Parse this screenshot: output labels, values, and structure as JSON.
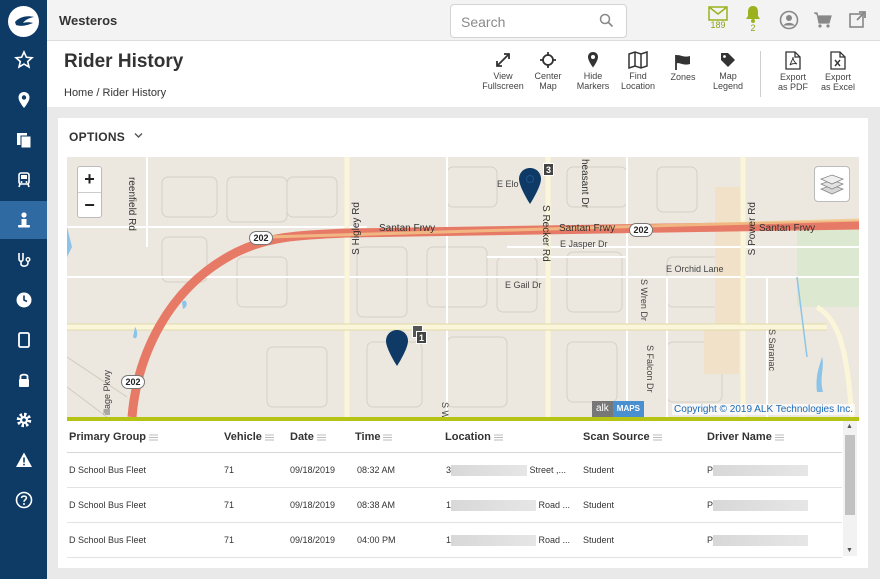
{
  "org_name": "Westeros",
  "search": {
    "placeholder": "Search"
  },
  "notifications": {
    "messages_count": "189",
    "alerts_count": "2"
  },
  "accent_colors": {
    "sidebar": "#0e3a66",
    "sidebar_active": "#2f6aa3",
    "highlight": "#b5c315",
    "link": "#1b6ab7"
  },
  "page": {
    "title": "Rider History",
    "breadcrumb_home": "Home",
    "breadcrumb_sep": "/",
    "breadcrumb_current": "Rider History"
  },
  "toolbar": [
    {
      "line1": "View",
      "line2": "Fullscreen",
      "icon": "expand-icon"
    },
    {
      "line1": "Center",
      "line2": "Map",
      "icon": "crosshair-icon"
    },
    {
      "line1": "Hide",
      "line2": "Markers",
      "icon": "map-pin-icon"
    },
    {
      "line1": "Find",
      "line2": "Location",
      "icon": "map-icon"
    },
    {
      "line1": "Zones",
      "line2": "",
      "icon": "flag-icon"
    },
    {
      "line1": "Map",
      "line2": "Legend",
      "icon": "tag-icon"
    },
    {
      "line1": "Export",
      "line2": "as PDF",
      "icon": "pdf-file-icon"
    },
    {
      "line1": "Export",
      "line2": "as Excel",
      "icon": "excel-file-icon"
    }
  ],
  "options_label": "OPTIONS",
  "map": {
    "zoom_in": "+",
    "zoom_out": "−",
    "labels": {
      "greenfield": "reenfield Rd",
      "higley": "S Higley Rd",
      "recker": "S Recker Rd",
      "pheasant": "heasant Dr",
      "power": "S Power Rd",
      "santan_west": "Santan Frwy",
      "santan_mid": "Santan Frwy",
      "santan_east": "Santan Frwy",
      "elo": "E Elo",
      "jasper": "E Jasper Dr",
      "orchid": "E Orchid Lane",
      "gail": "E Gail Dr",
      "wren": "S Wren Dr",
      "falcon": "S Falcon Dr",
      "saranac": "S Saranac",
      "village": "illage Pkwy",
      "s_w": "S W"
    },
    "shields": [
      "202",
      "202",
      "202"
    ],
    "markers": [
      {
        "badge": "3"
      },
      {
        "badge": "1"
      }
    ],
    "alk_logo": "alk",
    "maps_logo": "MAPS",
    "copyright": "Copyright © 2019 ALK Technologies Inc."
  },
  "table": {
    "columns": [
      "Primary Group",
      "Vehicle",
      "Date",
      "Time",
      "Location",
      "Scan Source",
      "Driver Name"
    ],
    "rows": [
      {
        "group": "D School Bus Fleet",
        "vehicle": "71",
        "date": "09/18/2019",
        "time": "08:32 AM",
        "loc_prefix": "3",
        "loc_suffix": "Street ,...",
        "source": "Student",
        "driver_prefix": "P"
      },
      {
        "group": "D School Bus Fleet",
        "vehicle": "71",
        "date": "09/18/2019",
        "time": "08:38 AM",
        "loc_prefix": "1",
        "loc_suffix": "Road ...",
        "source": "Student",
        "driver_prefix": "P"
      },
      {
        "group": "D School Bus Fleet",
        "vehicle": "71",
        "date": "09/18/2019",
        "time": "04:00 PM",
        "loc_prefix": "1",
        "loc_suffix": "Road ...",
        "source": "Student",
        "driver_prefix": "P"
      }
    ]
  }
}
